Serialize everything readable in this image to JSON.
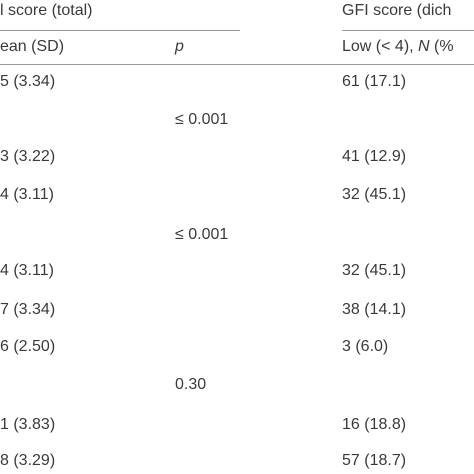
{
  "header": {
    "group1": "l score (total)",
    "group2": "GFI score (dich",
    "col_mean_sd": "ean (SD)",
    "col_p": "p",
    "col_low_prefix": "Low (< 4), ",
    "col_low_n": "N",
    "col_low_suffix": " (%"
  },
  "rows": [
    {
      "mean_sd": "5 (3.34)",
      "p": "",
      "low": "61 (17.1)"
    },
    {
      "mean_sd": "",
      "p": "≤ 0.001",
      "low": ""
    },
    {
      "mean_sd": "3 (3.22)",
      "p": "",
      "low": "41 (12.9)"
    },
    {
      "mean_sd": "4 (3.11)",
      "p": "",
      "low": "32 (45.1)"
    },
    {
      "mean_sd": "",
      "p": "≤ 0.001",
      "low": ""
    },
    {
      "mean_sd": "4 (3.11)",
      "p": "",
      "low": "32 (45.1)"
    },
    {
      "mean_sd": "7 (3.34)",
      "p": "",
      "low": "38 (14.1)"
    },
    {
      "mean_sd": "6 (2.50)",
      "p": "",
      "low": "3 (6.0)"
    },
    {
      "mean_sd": "",
      "p": "0.30",
      "low": ""
    },
    {
      "mean_sd": "1 (3.83)",
      "p": "",
      "low": "16 (18.8)"
    },
    {
      "mean_sd": "8 (3.29)",
      "p": "",
      "low": "57 (18.7)"
    }
  ]
}
